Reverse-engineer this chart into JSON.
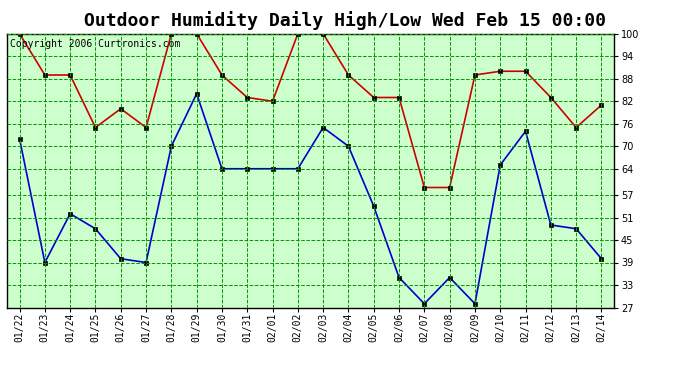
{
  "title": "Outdoor Humidity Daily High/Low Wed Feb 15 00:00",
  "copyright": "Copyright 2006 Curtronics.com",
  "dates": [
    "01/22",
    "01/23",
    "01/24",
    "01/25",
    "01/26",
    "01/27",
    "01/28",
    "01/29",
    "01/30",
    "01/31",
    "02/01",
    "02/02",
    "02/03",
    "02/04",
    "02/05",
    "02/06",
    "02/07",
    "02/08",
    "02/09",
    "02/10",
    "02/11",
    "02/12",
    "02/13",
    "02/14"
  ],
  "high_values": [
    100,
    89,
    89,
    75,
    80,
    75,
    100,
    100,
    89,
    83,
    82,
    100,
    100,
    89,
    83,
    83,
    59,
    59,
    89,
    90,
    90,
    83,
    75,
    81
  ],
  "low_values": [
    72,
    39,
    52,
    48,
    40,
    39,
    70,
    84,
    64,
    64,
    64,
    64,
    75,
    70,
    54,
    35,
    28,
    35,
    28,
    65,
    74,
    49,
    48,
    40
  ],
  "high_color": "#cc0000",
  "low_color": "#0000cc",
  "marker_color": "#000000",
  "bg_color": "#ccffcc",
  "plot_bg_color": "#ccffcc",
  "outer_bg_color": "#ffffff",
  "grid_color": "#009900",
  "border_color": "#000000",
  "title_fontsize": 13,
  "copyright_fontsize": 7,
  "tick_fontsize": 7,
  "ylim": [
    27,
    100
  ],
  "yticks": [
    27,
    33,
    39,
    45,
    51,
    57,
    64,
    70,
    76,
    82,
    88,
    94,
    100
  ]
}
